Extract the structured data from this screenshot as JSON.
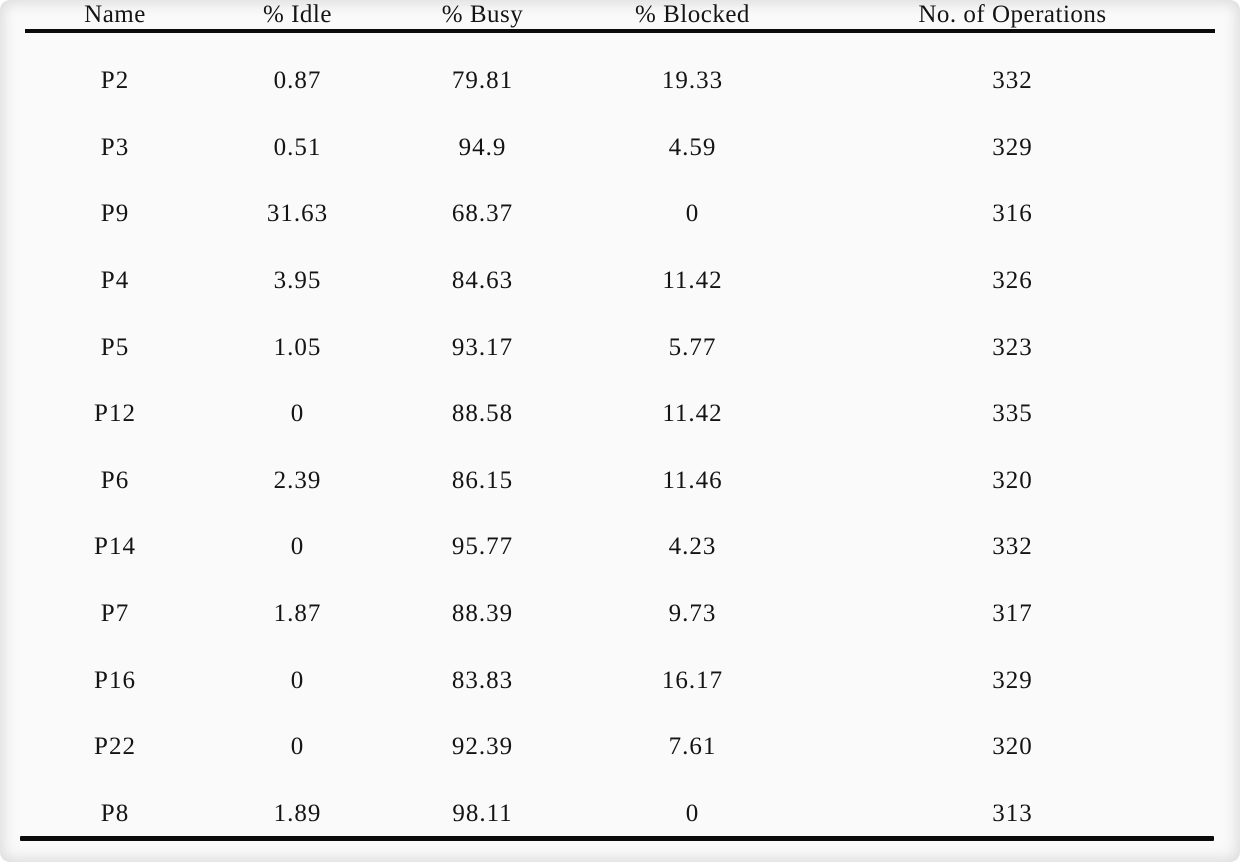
{
  "table": {
    "columns": [
      "Name",
      "% Idle",
      "% Busy",
      "% Blocked",
      "No. of Operations"
    ],
    "rows": [
      [
        "P2",
        "0.87",
        "79.81",
        "19.33",
        "332"
      ],
      [
        "P3",
        "0.51",
        "94.9",
        "4.59",
        "329"
      ],
      [
        "P9",
        "31.63",
        "68.37",
        "0",
        "316"
      ],
      [
        "P4",
        "3.95",
        "84.63",
        "11.42",
        "326"
      ],
      [
        "P5",
        "1.05",
        "93.17",
        "5.77",
        "323"
      ],
      [
        "P12",
        "0",
        "88.58",
        "11.42",
        "335"
      ],
      [
        "P6",
        "2.39",
        "86.15",
        "11.46",
        "320"
      ],
      [
        "P14",
        "0",
        "95.77",
        "4.23",
        "332"
      ],
      [
        "P7",
        "1.87",
        "88.39",
        "9.73",
        "317"
      ],
      [
        "P16",
        "0",
        "83.83",
        "16.17",
        "329"
      ],
      [
        "P22",
        "0",
        "92.39",
        "7.61",
        "320"
      ],
      [
        "P8",
        "1.89",
        "98.11",
        "0",
        "313"
      ]
    ],
    "colors": {
      "ink": "#141414",
      "paper": "#fafafa",
      "rule": "#0b0b0b"
    }
  }
}
